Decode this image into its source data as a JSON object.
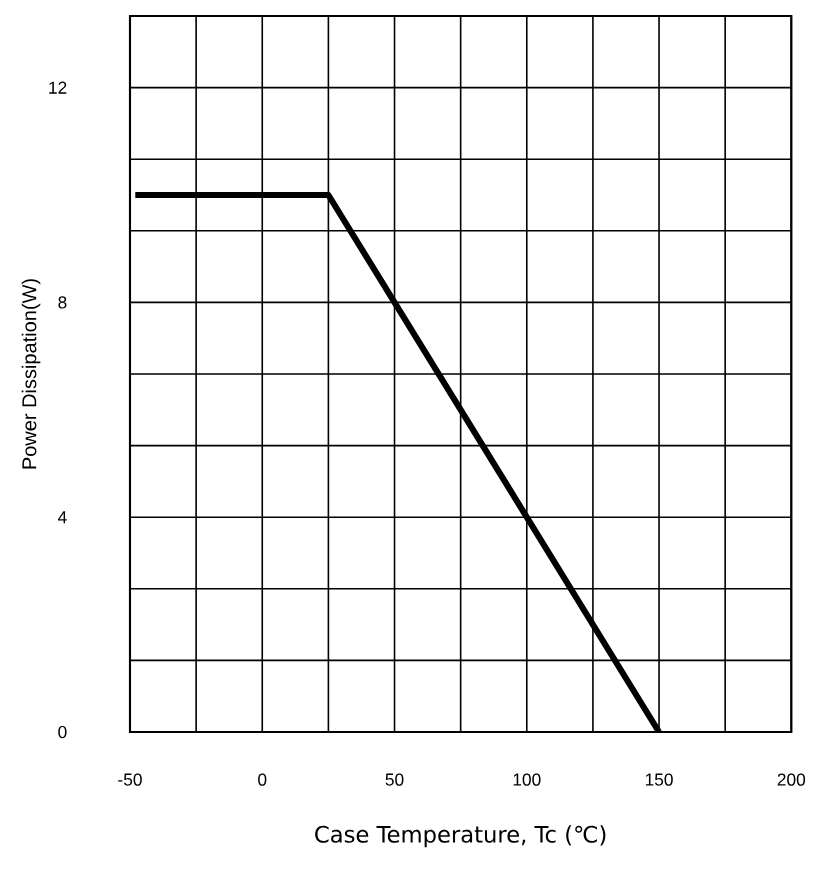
{
  "chart_data": {
    "type": "line",
    "xlabel": "Case Temperature, Tc (℃)",
    "ylabel": "Power Dissipation(W)",
    "x": [
      -48,
      25,
      150
    ],
    "series": [
      {
        "color": "#000000",
        "values": [
          10,
          10,
          0
        ]
      }
    ],
    "xlim": [
      -50,
      200
    ],
    "ylim": [
      0,
      13.333
    ],
    "xticks": [
      -50,
      {
        "value": -25,
        "label": null
      },
      0,
      {
        "value": 25,
        "label": null
      },
      50,
      {
        "value": 75,
        "label": null
      },
      100,
      {
        "value": 125,
        "label": null
      },
      150,
      {
        "value": 175,
        "label": null
      },
      200
    ],
    "yticks": [
      0,
      {
        "value": 1.333,
        "label": null
      },
      {
        "value": 2.667,
        "label": null
      },
      4,
      {
        "value": 5.333,
        "label": null
      },
      {
        "value": 6.667,
        "label": null
      },
      8,
      {
        "value": 9.333,
        "label": null
      },
      {
        "value": 10.667,
        "label": null
      },
      12
    ],
    "grid": true,
    "marker": "none",
    "line_style": "solid"
  }
}
